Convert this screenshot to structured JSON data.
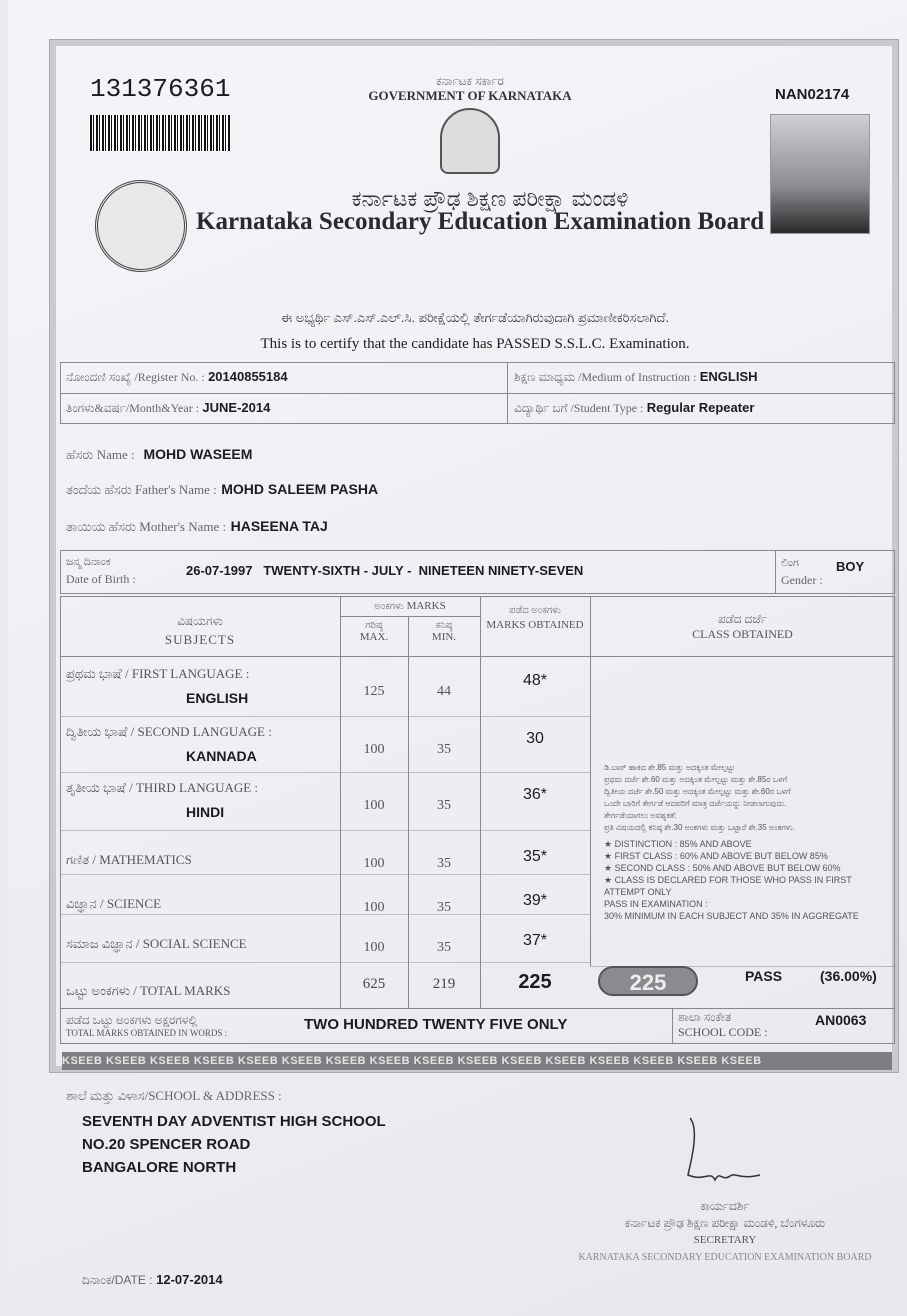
{
  "header": {
    "serial_no": "131376361",
    "doc_code": "NAN02174",
    "gov_kn": "ಕರ್ನಾಟಕ ಸರ್ಕಾರ",
    "gov_en": "GOVERNMENT OF KARNATAKA",
    "board_kn": "ಕರ್ನಾಟಕ ಪ್ರೌಢ ಶಿಕ್ಷಣ ಪರೀಕ್ಷಾ ಮಂಡಳಿ",
    "board_en": "Karnataka Secondary Education Examination Board",
    "certify_kn": "ಈ ಅಭ್ಯರ್ಥಿ ಎಸ್.ಎಸ್.ಎಲ್.ಸಿ. ಪರೀಕ್ಷೆಯಲ್ಲಿ ತೇರ್ಗಡೆಯಾಗಿರುವುದಾಗಿ ಪ್ರಮಾಣೀಕರಿಸಲಾಗಿದೆ.",
    "certify_en": "This is to certify that the candidate has PASSED S.S.L.C. Examination."
  },
  "info": {
    "register_label": "ನೋಂದಣಿ ಸಂಖ್ಯೆ /Register No. :",
    "register_value": "20140855184",
    "medium_label": "ಶಿಕ್ಷಣ ಮಾಧ್ಯಮ /Medium of Instruction :",
    "medium_value": "ENGLISH",
    "month_label": "ತಿಂಗಳು&ವರ್ಷ/Month&Year :",
    "month_value": "JUNE-2014",
    "type_label": "ವಿದ್ಯಾರ್ಥಿ ಬಗೆ /Student Type :",
    "type_value": "Regular Repeater",
    "name_label": "ಹೆಸರು Name :",
    "name_value": "MOHD WASEEM",
    "father_label": "ತಂದೆಯ ಹೆಸರು Father's Name :",
    "father_value": "MOHD SALEEM PASHA",
    "mother_label": "ತಾಯಿಯ ಹೆಸರು Mother's Name :",
    "mother_value": "HASEENA TAJ",
    "dob_label_kn": "ಜನ್ಮ ದಿನಾಂಕ",
    "dob_label": "Date of Birth :",
    "dob_value": "26-07-1997   TWENTY-SIXTH - JULY -  NINETEEN NINETY-SEVEN",
    "gender_label_kn": "ಲಿಂಗ",
    "gender_label": "Gender :",
    "gender_value": "BOY"
  },
  "marks": {
    "head": {
      "subjects_kn": "ವಿಷಯಗಳು",
      "subjects": "SUBJECTS",
      "marks_kn": "ಅಂಕಗಳು",
      "marks": "MARKS",
      "max_kn": "ಗರಿಷ್ಠ",
      "max": "MAX.",
      "min_kn": "ಕನಿಷ್ಠ",
      "min": "MIN.",
      "obt_kn": "ಪಡೆದ ಅಂಕಗಳು",
      "obt": "MARKS OBTAINED",
      "class_kn": "ಪಡೆದ ದರ್ಜೆ",
      "class": "CLASS OBTAINED"
    },
    "rows": [
      {
        "label": "ಪ್ರಥಮ ಭಾಷೆ / FIRST LANGUAGE :",
        "subject": "ENGLISH",
        "max": "125",
        "min": "44",
        "obtained": "48*"
      },
      {
        "label": "ದ್ವಿತೀಯ ಭಾಷೆ / SECOND LANGUAGE :",
        "subject": "KANNADA",
        "max": "100",
        "min": "35",
        "obtained": "30"
      },
      {
        "label": "ತೃತೀಯ ಭಾಷೆ / THIRD LANGUAGE :",
        "subject": "HINDI",
        "max": "100",
        "min": "35",
        "obtained": "36*"
      },
      {
        "label": "ಗಣಿತ / MATHEMATICS",
        "subject": "",
        "max": "100",
        "min": "35",
        "obtained": "35*"
      },
      {
        "label": "ವಿಜ್ಞಾನ / SCIENCE",
        "subject": "",
        "max": "100",
        "min": "35",
        "obtained": "39*"
      },
      {
        "label": "ಸಮಾಜ ವಿಜ್ಞಾನ / SOCIAL SCIENCE",
        "subject": "",
        "max": "100",
        "min": "35",
        "obtained": "37*"
      }
    ],
    "total": {
      "label": "ಒಟ್ಟು ಅಂಕಗಳು / TOTAL MARKS",
      "max": "625",
      "min": "219",
      "obtained": "225",
      "badge": "225",
      "result": "PASS",
      "percent": "(36.00%)"
    },
    "words_label_kn": "ಪಡೆದ ಒಟ್ಟು ಅಂಕಗಳು ಅಕ್ಷರಗಳಲ್ಲಿ",
    "words_label": "TOTAL MARKS OBTAINED IN WORDS :",
    "words_value": "TWO HUNDRED TWENTY FIVE ONLY",
    "school_code_kn": "ಶಾಲಾ ಸಂಕೇತ",
    "school_code_label": "SCHOOL CODE :",
    "school_code_value": "AN0063"
  },
  "legend": {
    "kn": [
      "ಡಿ.ಬಾರ್ ಹಾಕಿದ ಶೇ.85 ಮತ್ತು ಅದಕ್ಕಿಂತ ಮೇಲ್ಪಟ್ಟು",
      "ಪ್ರಥಮ ದರ್ಜೆ ಶೇ.60 ಮತ್ತು ಅದಕ್ಕಿಂತ ಮೇಲ್ಪಟ್ಟು ಮತ್ತು ಶೇ.85ರ ಒಳಗೆ",
      "ದ್ವಿತೀಯ ದರ್ಜೆ ಶೇ.50 ಮತ್ತು ಅದಕ್ಕಿಂತ ಮೇಲ್ಪಟ್ಟು ಮತ್ತು ಶೇ.60ರ ಒಳಗೆ",
      "ಒಂದೇ ಬಾರಿಗೆ ತೇರ್ಗಡೆ ಆದವರಿಗೆ ಮಾತ್ರ ದರ್ಜೆಯನ್ನು ನೀಡಲಾಗುವುದು.",
      "ತೇರ್ಗಡೆಯಾಗಲು ಅವಶ್ಯಕತೆ:",
      "ಪ್ರತಿ ವಿಷಯದಲ್ಲಿ ಕನಿಷ್ಠ ಶೇ.30 ಅಂಕಗಳು ಮತ್ತು ಒಟ್ಟಾರೆ ಶೇ.35 ಅಂಕಗಳು."
    ],
    "en": [
      "DISTINCTION : 85% AND ABOVE",
      "FIRST CLASS : 60% AND ABOVE BUT BELOW 85%",
      "SECOND CLASS : 50% AND ABOVE BUT BELOW 60%",
      "CLASS IS DECLARED FOR THOSE WHO PASS IN FIRST ATTEMPT ONLY"
    ],
    "pass_title": "PASS IN EXAMINATION :",
    "pass_rule": "30% MINIMUM IN EACH SUBJECT AND 35% IN AGGREGATE"
  },
  "strip_text": "KSEEB  KSEEB  KSEEB  KSEEB  KSEEB  KSEEB  KSEEB  KSEEB  KSEEB  KSEEB  KSEEB  KSEEB  KSEEB  KSEEB  KSEEB  KSEEB",
  "school": {
    "label": "ಶಾಲೆ ಮತ್ತು ವಿಳಾಸ/SCHOOL & ADDRESS :",
    "lines": [
      "SEVENTH DAY ADVENTIST HIGH SCHOOL",
      "NO.20 SPENCER ROAD",
      "BANGALORE NORTH"
    ]
  },
  "signatory": {
    "title_kn": "ಕಾರ್ಯದರ್ಶಿ",
    "board_kn": "ಕರ್ನಾಟಕ ಪ್ರೌಢ ಶಿಕ್ಷಣ ಪರೀಕ್ಷಾ ಮಂಡಳಿ, ಬೆಂಗಳೂರು",
    "title": "SECRETARY",
    "board": "KARNATAKA SECONDARY EDUCATION EXAMINATION BOARD"
  },
  "date": {
    "label": "ದಿನಾಂಕ/DATE :",
    "value": "12-07-2014"
  }
}
